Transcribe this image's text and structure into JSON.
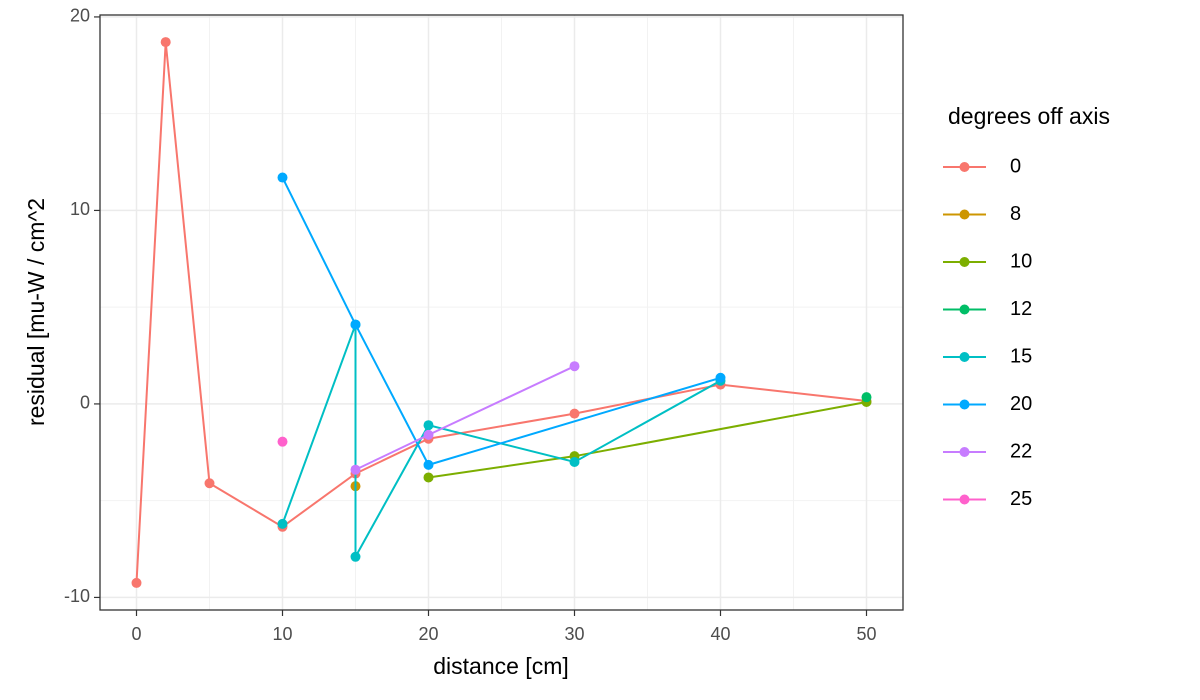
{
  "chart_data": {
    "type": "line",
    "xlabel": "distance [cm]",
    "ylabel": "residual [mu-W / cm^2",
    "legend_title": "degrees off axis",
    "xlim": [
      -2.5,
      52.5
    ],
    "xticks": [
      0,
      10,
      20,
      30,
      40,
      50
    ],
    "ylim": [
      -10.65,
      20.1
    ],
    "yticks": [
      -10,
      0,
      10,
      20
    ],
    "grid": true,
    "legend": "right",
    "series": [
      {
        "name": "0",
        "color": "#F8766D",
        "x": [
          0,
          2,
          5,
          10,
          15,
          20,
          30,
          40,
          50
        ],
        "values": [
          -9.25,
          18.7,
          -4.1,
          -6.35,
          -3.6,
          -1.8,
          -0.5,
          1.0,
          0.15
        ]
      },
      {
        "name": "8",
        "color": "#CD9600",
        "x": [
          15
        ],
        "values": [
          -4.25
        ]
      },
      {
        "name": "10",
        "color": "#7CAE00",
        "x": [
          20,
          30,
          50
        ],
        "values": [
          -3.8,
          -2.7,
          0.1
        ]
      },
      {
        "name": "12",
        "color": "#00BE67",
        "x": [
          50
        ],
        "values": [
          0.35
        ]
      },
      {
        "name": "15",
        "color": "#00BFC4",
        "x": [
          10,
          15,
          15,
          20,
          30,
          40
        ],
        "values": [
          -6.2,
          4.1,
          -7.9,
          -1.1,
          -3.0,
          1.2
        ]
      },
      {
        "name": "20",
        "color": "#00A9FF",
        "x": [
          10,
          15,
          20,
          40
        ],
        "values": [
          11.7,
          4.1,
          -3.15,
          1.35
        ]
      },
      {
        "name": "22",
        "color": "#C77CFF",
        "x": [
          15,
          20,
          30
        ],
        "values": [
          -3.4,
          -1.6,
          1.95
        ]
      },
      {
        "name": "25",
        "color": "#FF61CC",
        "x": [
          10
        ],
        "values": [
          -1.95
        ]
      }
    ]
  }
}
